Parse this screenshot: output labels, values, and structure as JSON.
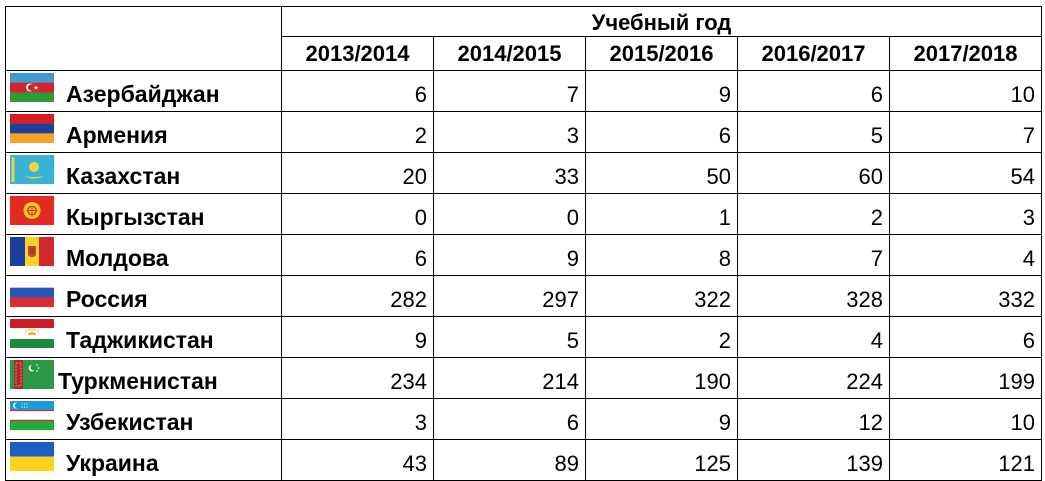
{
  "chart_data": {
    "type": "table",
    "header_title": "Учебный год",
    "columns": [
      "2013/2014",
      "2014/2015",
      "2015/2016",
      "2016/2017",
      "2017/2018"
    ],
    "rows": [
      {
        "country": "Азербайджан",
        "flag": "azerbaijan-flag",
        "values": [
          6,
          7,
          9,
          6,
          10
        ]
      },
      {
        "country": "Армения",
        "flag": "armenia-flag",
        "values": [
          2,
          3,
          6,
          5,
          7
        ]
      },
      {
        "country": "Казахстан",
        "flag": "kazakhstan-flag",
        "values": [
          20,
          33,
          50,
          60,
          54
        ]
      },
      {
        "country": "Кыргызстан",
        "flag": "kyrgyzstan-flag",
        "values": [
          0,
          0,
          1,
          2,
          3
        ]
      },
      {
        "country": "Молдова",
        "flag": "moldova-flag",
        "values": [
          6,
          9,
          8,
          7,
          4
        ]
      },
      {
        "country": "Россия",
        "flag": "russia-flag",
        "values": [
          282,
          297,
          322,
          328,
          332
        ]
      },
      {
        "country": "Таджикистан",
        "flag": "tajikistan-flag",
        "values": [
          9,
          5,
          2,
          4,
          6
        ]
      },
      {
        "country": "Туркменистан",
        "flag": "turkmenistan-flag",
        "values": [
          234,
          214,
          190,
          224,
          199
        ]
      },
      {
        "country": "Узбекистан",
        "flag": "uzbekistan-flag",
        "values": [
          3,
          6,
          9,
          12,
          10
        ]
      },
      {
        "country": "Украина",
        "flag": "ukraine-flag",
        "values": [
          43,
          89,
          125,
          139,
          121
        ]
      }
    ]
  },
  "colors": {
    "border": "#000000",
    "text": "#000000",
    "background": "#ffffff"
  }
}
